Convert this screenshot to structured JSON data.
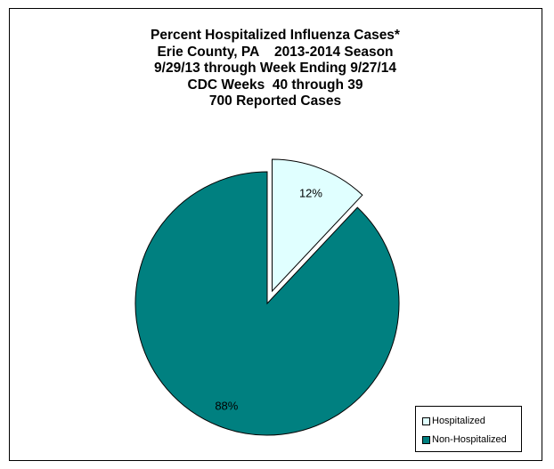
{
  "chart_data": {
    "type": "pie",
    "title_lines": [
      "Percent Hospitalized Influenza Cases*",
      "Erie County, PA    2013-2014 Season",
      "9/29/13 through Week Ending 9/27/14",
      "CDC Weeks  40 through 39",
      "700 Reported Cases"
    ],
    "slices": [
      {
        "name": "Hospitalized",
        "value": 12,
        "label": "12%",
        "color": "#e0ffff",
        "exploded": true
      },
      {
        "name": "Non-Hospitalized",
        "value": 88,
        "label": "88%",
        "color": "#008080",
        "exploded": false
      }
    ],
    "legend_position": "bottom-right"
  }
}
